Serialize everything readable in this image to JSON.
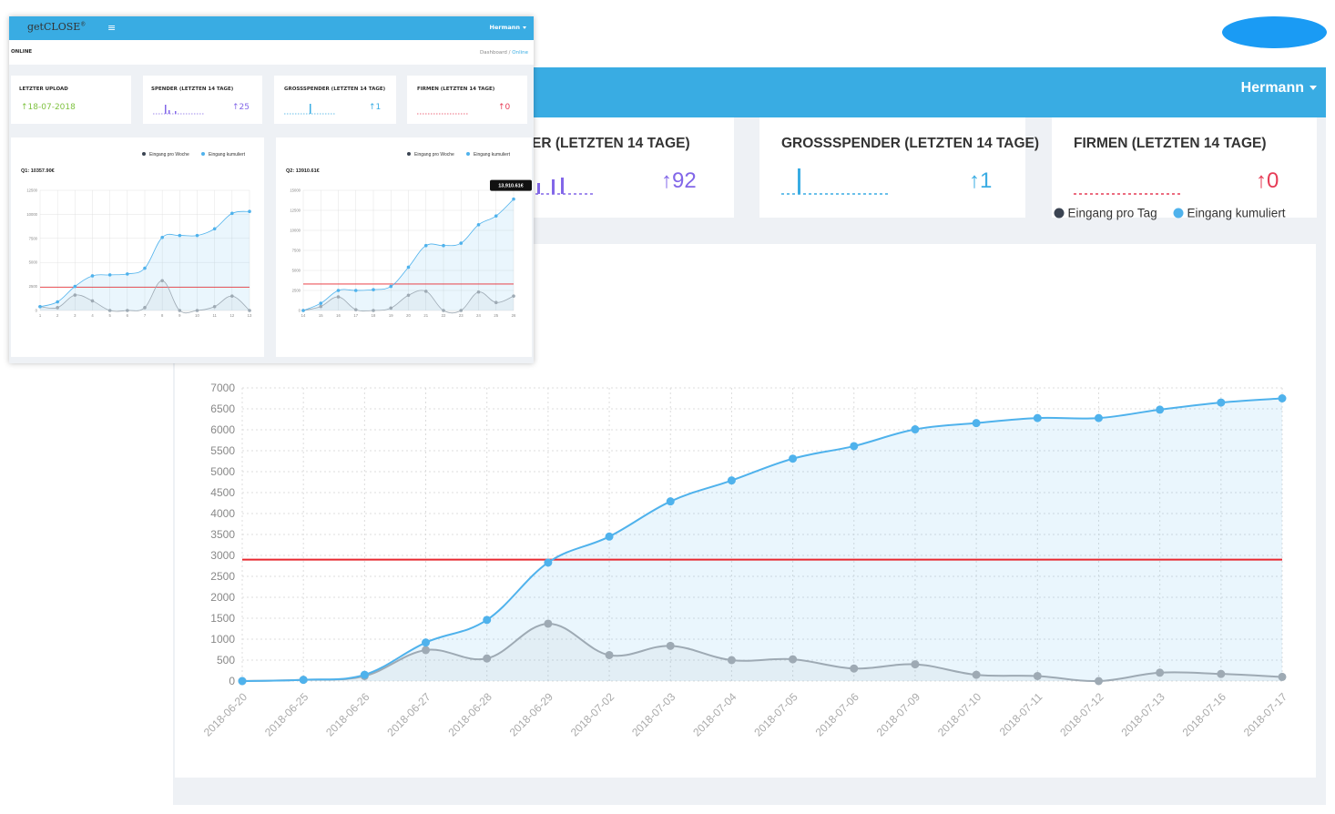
{
  "colors": {
    "accent": "#39ace3",
    "line_cum": "#4fb2ec",
    "line_day": "#9eaab4",
    "target": "#e8282f",
    "green": "#7fc241",
    "purple": "#8267e8",
    "red": "#e63c56"
  },
  "big": {
    "user": "Hermann",
    "cards": [
      {
        "title": "ER (LETZTEN 14 TAGE)",
        "value": "↑92"
      },
      {
        "title": "GROSSSPENDER (LETZTEN 14 TAGE)",
        "value": "↑1"
      },
      {
        "title": "FIRMEN (LETZTEN 14 TAGE)",
        "value": "↑0"
      }
    ],
    "legend": [
      "Eingang pro Tag",
      "Eingang kumuliert"
    ]
  },
  "small": {
    "logo": "getCLOSE",
    "user": "Hermann",
    "page_title": "ONLINE",
    "breadcrumb": {
      "home": "Dashboard",
      "sep": "/",
      "current": "Online"
    },
    "cards": [
      {
        "title": "LETZTER UPLOAD",
        "value": "↑18-07-2018"
      },
      {
        "title": "SPENDER (LETZTEN 14 TAGE)",
        "value": "↑25"
      },
      {
        "title": "GROSSSPENDER (LETZTEN 14 TAGE)",
        "value": "↑1"
      },
      {
        "title": "FIRMEN (LETZTEN 14 TAGE)",
        "value": "↑0"
      }
    ],
    "legend": [
      "Eingang pro Woche",
      "Eingang kumuliert"
    ]
  },
  "chart_data": [
    {
      "type": "line",
      "chart": "big",
      "categories": [
        "2018-06-20",
        "2018-06-25",
        "2018-06-26",
        "2018-06-27",
        "2018-06-28",
        "2018-06-29",
        "2018-07-02",
        "2018-07-03",
        "2018-07-04",
        "2018-07-05",
        "2018-07-06",
        "2018-07-09",
        "2018-07-10",
        "2018-07-11",
        "2018-07-12",
        "2018-07-13",
        "2018-07-16",
        "2018-07-17"
      ],
      "series": [
        {
          "name": "Eingang pro Tag",
          "values": [
            0,
            30,
            120,
            740,
            540,
            1370,
            620,
            840,
            500,
            520,
            300,
            400,
            150,
            120,
            0,
            200,
            170,
            100
          ]
        },
        {
          "name": "Eingang kumuliert",
          "values": [
            0,
            30,
            150,
            920,
            1460,
            2830,
            3450,
            4290,
            4790,
            5310,
            5610,
            6010,
            6160,
            6280,
            6280,
            6480,
            6650,
            6750
          ]
        }
      ],
      "target": 2900,
      "ylim": [
        0,
        7000
      ],
      "yticks": [
        0,
        500,
        1000,
        1500,
        2000,
        2500,
        3000,
        3500,
        4000,
        4500,
        5000,
        5500,
        6000,
        6500,
        7000
      ],
      "legend_position": "top-right",
      "grid": true
    },
    {
      "type": "line",
      "chart": "q1",
      "title": "Q1: 10357.90€",
      "categories": [
        "1",
        "2",
        "3",
        "4",
        "5",
        "6",
        "7",
        "8",
        "9",
        "10",
        "11",
        "12",
        "13"
      ],
      "series": [
        {
          "name": "Eingang pro Woche",
          "values": [
            400,
            300,
            1600,
            1000,
            0,
            0,
            300,
            3100,
            0,
            0,
            400,
            1500,
            0
          ]
        },
        {
          "name": "Eingang kumuliert",
          "values": [
            400,
            900,
            2500,
            3600,
            3700,
            3800,
            4400,
            7600,
            7800,
            7800,
            8500,
            10100,
            10300
          ]
        }
      ],
      "target": 2400,
      "ylim": [
        0,
        12500
      ],
      "yticks": [
        0,
        2500,
        5000,
        7500,
        10000,
        12500
      ],
      "legend_position": "top-right",
      "grid": true
    },
    {
      "type": "line",
      "chart": "q2",
      "title": "Q2: 13910.61€",
      "tooltip": "13,910.61€",
      "categories": [
        "14",
        "15",
        "16",
        "17",
        "18",
        "19",
        "20",
        "21",
        "22",
        "23",
        "24",
        "25",
        "26"
      ],
      "series": [
        {
          "name": "Eingang pro Woche",
          "values": [
            0,
            500,
            1700,
            100,
            0,
            300,
            1900,
            2400,
            0,
            0,
            2300,
            1000,
            1800
          ]
        },
        {
          "name": "Eingang kumuliert",
          "values": [
            0,
            900,
            2500,
            2500,
            2600,
            3000,
            5400,
            8100,
            8100,
            8400,
            10700,
            11800,
            13900
          ]
        }
      ],
      "target": 3300,
      "ylim": [
        0,
        15000
      ],
      "yticks": [
        0,
        2500,
        5000,
        7500,
        10000,
        12500,
        15000
      ],
      "legend_position": "top-right",
      "grid": true
    }
  ]
}
